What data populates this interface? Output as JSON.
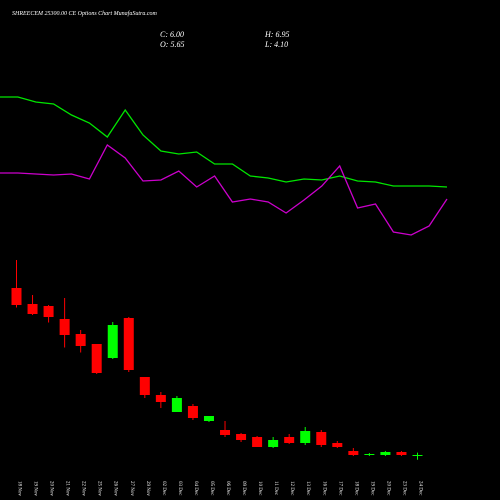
{
  "chart_data": {
    "type": "candlestick",
    "title": "SHREECEM 25300.00 CE Options Chart MunafaSutra.com",
    "info": [
      "C: 6.00",
      "H: 6.95",
      "O: 5.65",
      "L: 4.10"
    ],
    "categories": [
      "18 Nov",
      "19 Nov",
      "20 Nov",
      "21 Nov",
      "22 Nov",
      "25 Nov",
      "26 Nov",
      "27 Nov",
      "29 Nov",
      "02 Dec",
      "03 Dec",
      "04 Dec",
      "05 Dec",
      "06 Dec",
      "09 Dec",
      "10 Dec",
      "11 Dec",
      "12 Dec",
      "13 Dec",
      "16 Dec",
      "17 Dec",
      "18 Dec",
      "19 Dec",
      "20 Dec",
      "23 Dec",
      "24 Dec"
    ],
    "open": [
      72.8,
      66.4,
      65.6,
      60.4,
      54.4,
      50.4,
      44.8,
      60.8,
      37.2,
      30,
      23.2,
      25.6,
      19.6,
      16,
      14.4,
      13.2,
      9.2,
      13.2,
      10.8,
      15.2,
      10.8,
      7.6,
      6,
      6,
      7.2,
      5.65
    ],
    "high": [
      84,
      70,
      66,
      68.8,
      56,
      50.4,
      59.2,
      61.2,
      37.2,
      31.2,
      29.6,
      26.4,
      21.6,
      19.6,
      14.8,
      13.6,
      13.2,
      14.4,
      17.2,
      16,
      11.6,
      8.8,
      6.8,
      7.6,
      7.6,
      6.95
    ],
    "low": [
      65,
      62,
      59,
      49,
      47,
      38.4,
      44.4,
      39.2,
      28.8,
      24.8,
      23.2,
      20,
      19.2,
      13.2,
      11.2,
      9.2,
      8.8,
      10.4,
      10,
      9.2,
      8.8,
      5.6,
      5.6,
      5.6,
      5.6,
      4.1
    ],
    "close": [
      66,
      62.4,
      61.2,
      54,
      49.6,
      38.8,
      58,
      40,
      30,
      27.2,
      28.8,
      20.8,
      21.6,
      14,
      12,
      9.2,
      12,
      10.8,
      15.6,
      10,
      9.2,
      6,
      6.4,
      7.2,
      6,
      6
    ],
    "up_color": "#00ff00",
    "down_color": "#ff0000",
    "lines": [
      {
        "color": "#00e600",
        "values": [
          149.2,
          149.2,
          147.2,
          146.4,
          142,
          138.8,
          133.2,
          144,
          134,
          127.6,
          126.4,
          127.2,
          122.4,
          122.4,
          117.6,
          116.8,
          115.2,
          116.4,
          116,
          117.6,
          115.6,
          115.2,
          113.6,
          113.6,
          113.6,
          113.2
        ]
      },
      {
        "color": "#cc00cc",
        "values": [
          118.8,
          118.8,
          118.4,
          118,
          118.4,
          116.4,
          130,
          124.8,
          115.6,
          116,
          119.6,
          113.2,
          117.6,
          107.2,
          108.4,
          107.2,
          102.8,
          108,
          113.6,
          121.6,
          104.8,
          106.4,
          95.2,
          94,
          97.6,
          108.4
        ]
      }
    ],
    "ylim": [
      0,
      188
    ]
  }
}
